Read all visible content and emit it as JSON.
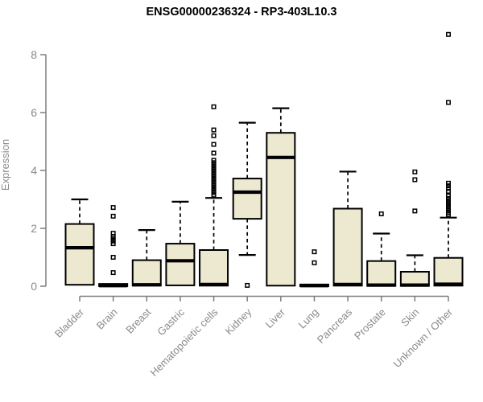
{
  "chart_data": {
    "type": "boxplot",
    "title": "ENSG00000236324 - RP3-403L10.3",
    "ylabel": "Expression",
    "xlabel": "",
    "ylim": [
      0,
      8.8
    ],
    "yticks": [
      0,
      2,
      4,
      6,
      8
    ],
    "grid": false,
    "legend": null,
    "x_label_rotation_deg": 45,
    "colors": {
      "box_fill": "#EDE8D0",
      "box_stroke": "#000000",
      "median": "#000000",
      "whisker": "#000000",
      "outlier": "#000000",
      "axis_line": "#7d7d7d",
      "axis_text": "#8a8a8a",
      "title_text": "#000000"
    },
    "categories": [
      "Bladder",
      "Brain",
      "Breast",
      "Gastric",
      "Hematopoietic cells",
      "Kidney",
      "Liver",
      "Lung",
      "Pancreas",
      "Prostate",
      "Skin",
      "Unknown / Other"
    ],
    "series": [
      {
        "name": "Bladder",
        "whisker_low": 0.05,
        "q1": 0.05,
        "median": 1.33,
        "q3": 2.15,
        "whisker_high": 3.0,
        "outliers": []
      },
      {
        "name": "Brain",
        "whisker_low": 0.0,
        "q1": 0.0,
        "median": 0.02,
        "q3": 0.08,
        "whisker_high": 0.08,
        "outliers": [
          2.72,
          2.42,
          1.83,
          1.72,
          1.64,
          1.56,
          1.47,
          1.0,
          0.47
        ]
      },
      {
        "name": "Breast",
        "whisker_low": 0.02,
        "q1": 0.02,
        "median": 0.05,
        "q3": 0.9,
        "whisker_high": 1.94,
        "outliers": []
      },
      {
        "name": "Gastric",
        "whisker_low": 0.03,
        "q1": 0.03,
        "median": 0.88,
        "q3": 1.47,
        "whisker_high": 2.92,
        "outliers": []
      },
      {
        "name": "Hematopoietic cells",
        "whisker_low": 0.02,
        "q1": 0.02,
        "median": 0.06,
        "q3": 1.25,
        "whisker_high": 3.05,
        "outliers": [
          6.2,
          5.4,
          5.2,
          4.9,
          4.6,
          4.35,
          4.27,
          4.19,
          4.11,
          4.03,
          3.95,
          3.87,
          3.79,
          3.71,
          3.63,
          3.55,
          3.47,
          3.39,
          3.31,
          3.23,
          3.15
        ]
      },
      {
        "name": "Kidney",
        "whisker_low": 1.08,
        "q1": 2.33,
        "median": 3.25,
        "q3": 3.72,
        "whisker_high": 5.65,
        "outliers": [
          0.03
        ]
      },
      {
        "name": "Liver",
        "whisker_low": 0.02,
        "q1": 0.02,
        "median": 4.45,
        "q3": 5.3,
        "whisker_high": 6.15,
        "outliers": []
      },
      {
        "name": "Lung",
        "whisker_low": 0.0,
        "q1": 0.0,
        "median": 0.02,
        "q3": 0.06,
        "whisker_high": 0.06,
        "outliers": [
          1.19,
          0.81
        ]
      },
      {
        "name": "Pancreas",
        "whisker_low": 0.02,
        "q1": 0.02,
        "median": 0.06,
        "q3": 2.68,
        "whisker_high": 3.96,
        "outliers": []
      },
      {
        "name": "Prostate",
        "whisker_low": 0.01,
        "q1": 0.01,
        "median": 0.04,
        "q3": 0.87,
        "whisker_high": 1.82,
        "outliers": [
          2.5
        ]
      },
      {
        "name": "Skin",
        "whisker_low": 0.01,
        "q1": 0.01,
        "median": 0.04,
        "q3": 0.5,
        "whisker_high": 1.07,
        "outliers": [
          3.95,
          3.68,
          2.6
        ]
      },
      {
        "name": "Unknown / Other",
        "whisker_low": 0.02,
        "q1": 0.02,
        "median": 0.07,
        "q3": 0.98,
        "whisker_high": 2.37,
        "outliers": [
          8.7,
          6.35,
          3.56,
          3.47,
          3.38,
          3.28,
          3.12,
          3.03,
          2.94,
          2.86,
          2.78,
          2.7,
          2.62,
          2.54,
          2.47
        ]
      }
    ]
  }
}
